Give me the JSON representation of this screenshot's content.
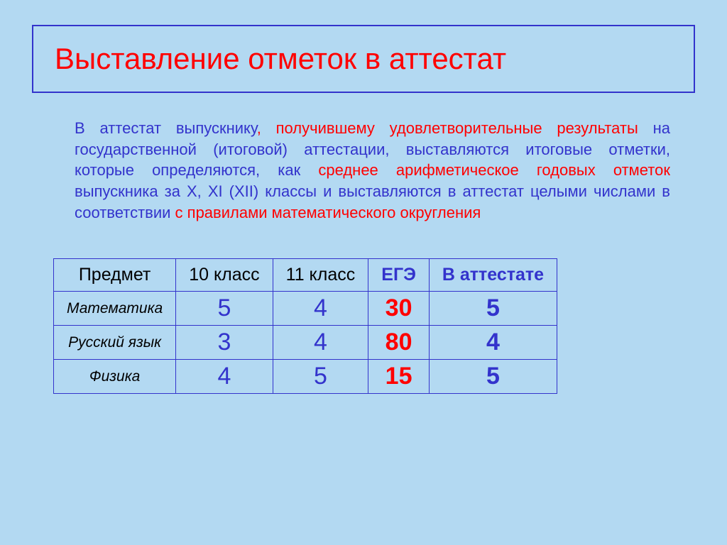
{
  "title": "Выставление отметок в аттестат",
  "paragraph": {
    "p1_a": "В аттестат выпускнику",
    "p1_b": ", получившему ",
    "p1_c": "удовлетворительные результаты",
    "p1_d": " на государственной (итоговой) аттестации, выставляются итоговые отметки, которые определяются, как ",
    "p1_e": "среднее арифметическое годовых отметок",
    "p1_f": " выпускника за X, XI (XII) классы и выставляются в аттестат целыми числами в соответствии ",
    "p1_g": "с правилами математического округления"
  },
  "table": {
    "headers": {
      "col1": "Предмет",
      "col2": "10 класс",
      "col3": "11 класс",
      "col4": "ЕГЭ",
      "col5": "В аттестате"
    },
    "rows": [
      {
        "subject": "Математика",
        "g10": "5",
        "g11": "4",
        "ege": "30",
        "cert": "5"
      },
      {
        "subject": "Русский язык",
        "g10": "3",
        "g11": "4",
        "ege": "80",
        "cert": "4"
      },
      {
        "subject": "Физика",
        "g10": "4",
        "g11": "5",
        "ege": "15",
        "cert": "5"
      }
    ]
  },
  "colors": {
    "background": "#b3d9f2",
    "blue": "#3333cc",
    "red": "#ff0000"
  },
  "font_sizes": {
    "title": 42,
    "body": 22,
    "table_header": 25,
    "table_subject": 21,
    "table_grade": 34
  }
}
